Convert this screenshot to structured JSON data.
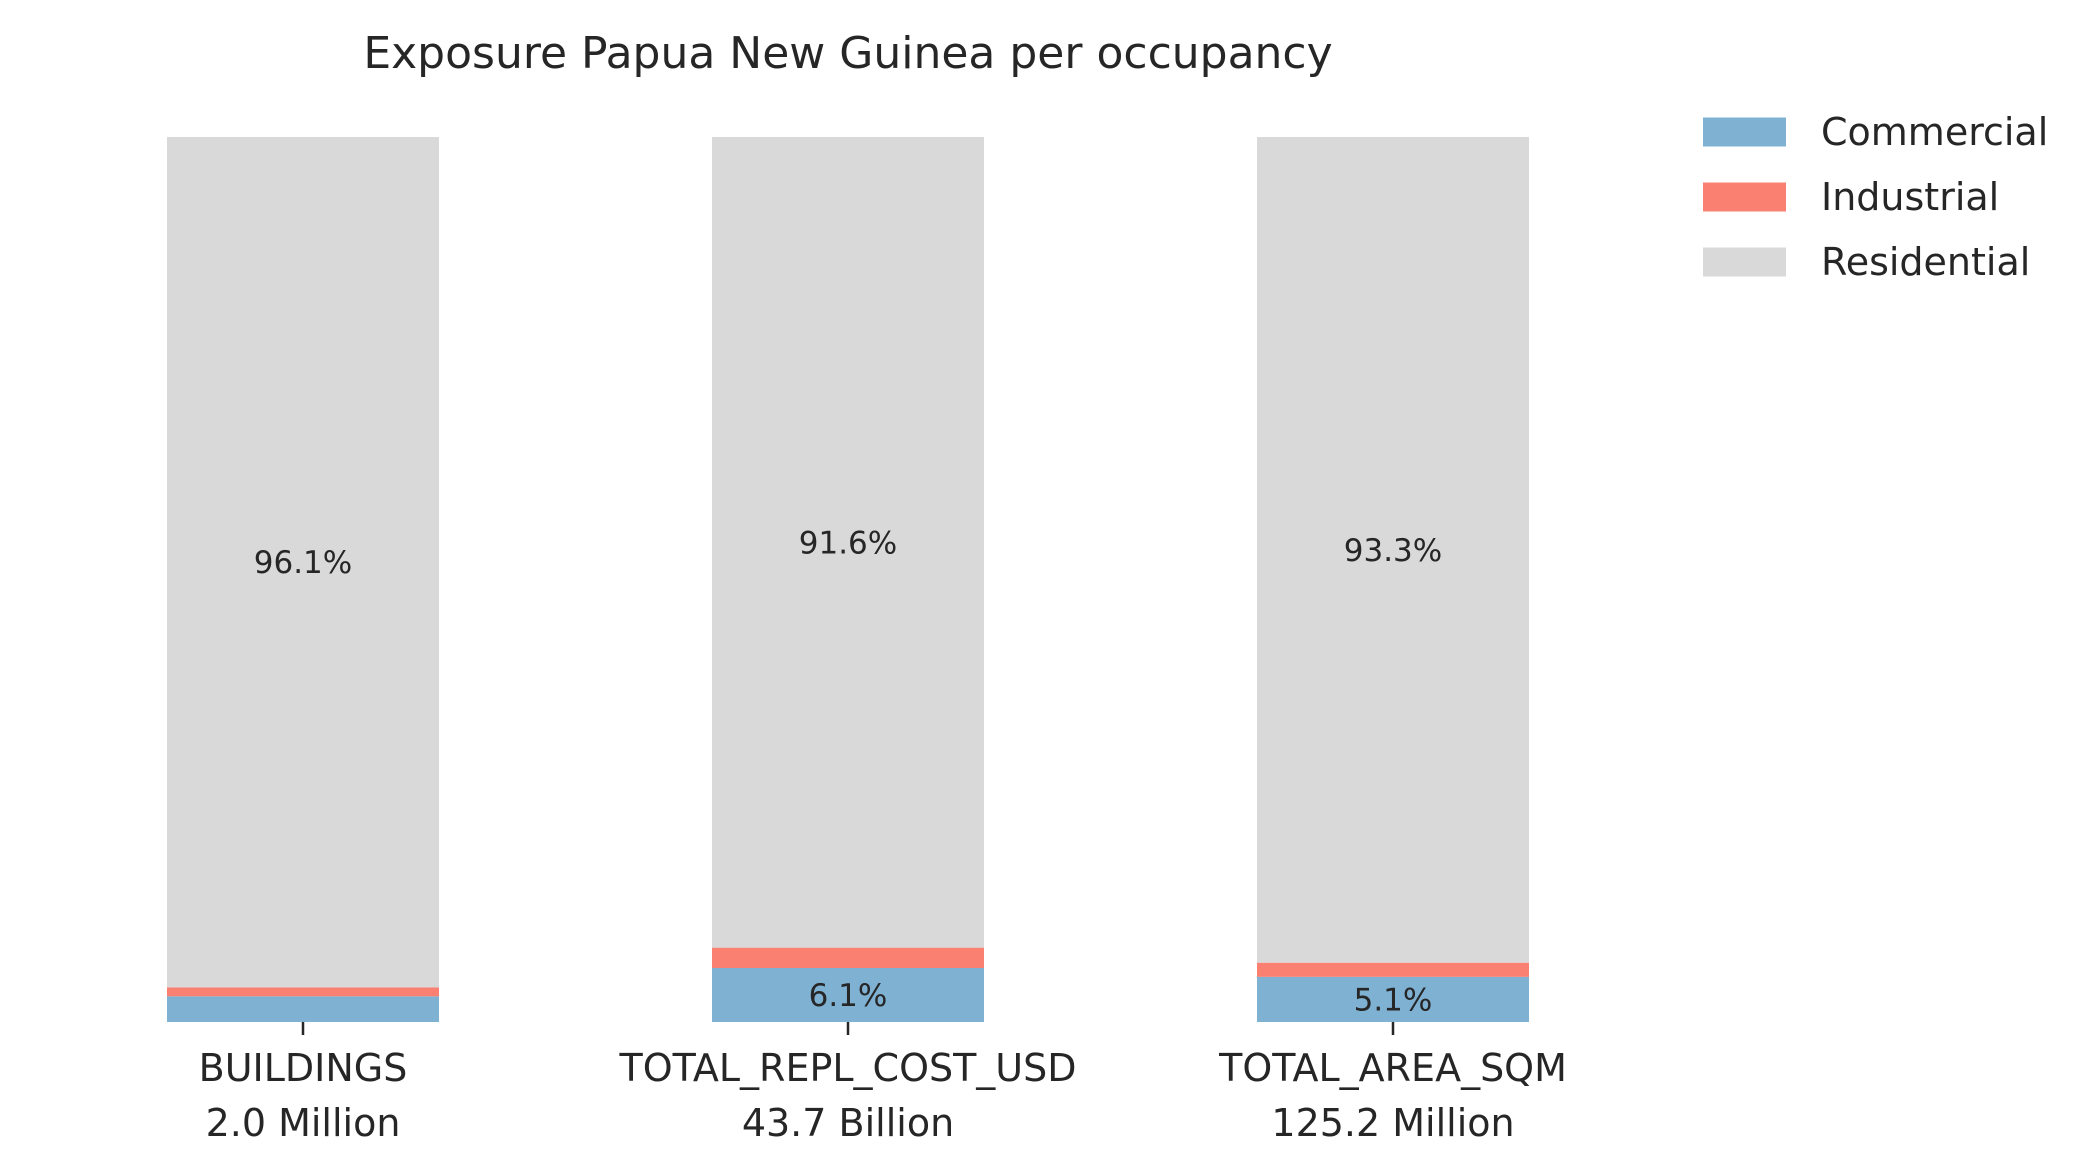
{
  "chart_data": {
    "type": "bar",
    "stacked": true,
    "normalized_percent": true,
    "title": "Exposure Papua New Guinea per occupancy",
    "xlabel": "",
    "ylabel": "",
    "ylim": [
      0,
      100
    ],
    "grid": false,
    "legend_position": "top-right",
    "categories": [
      {
        "name": "BUILDINGS",
        "total": "2.0 Million"
      },
      {
        "name": "TOTAL_REPL_COST_USD",
        "total": "43.7 Billion"
      },
      {
        "name": "TOTAL_AREA_SQM",
        "total": "125.2 Million"
      }
    ],
    "series": [
      {
        "name": "Commercial",
        "color": "#7fb1d3",
        "values": [
          2.9,
          6.1,
          5.1
        ],
        "labels": [
          "",
          "6.1%",
          "5.1%"
        ]
      },
      {
        "name": "Industrial",
        "color": "#fa8072",
        "values": [
          1.0,
          2.3,
          1.6
        ],
        "labels": [
          "",
          "",
          ""
        ]
      },
      {
        "name": "Residential",
        "color": "#d9d9d9",
        "values": [
          96.1,
          91.6,
          93.3
        ],
        "labels": [
          "96.1%",
          "91.6%",
          "93.3%"
        ]
      }
    ]
  }
}
